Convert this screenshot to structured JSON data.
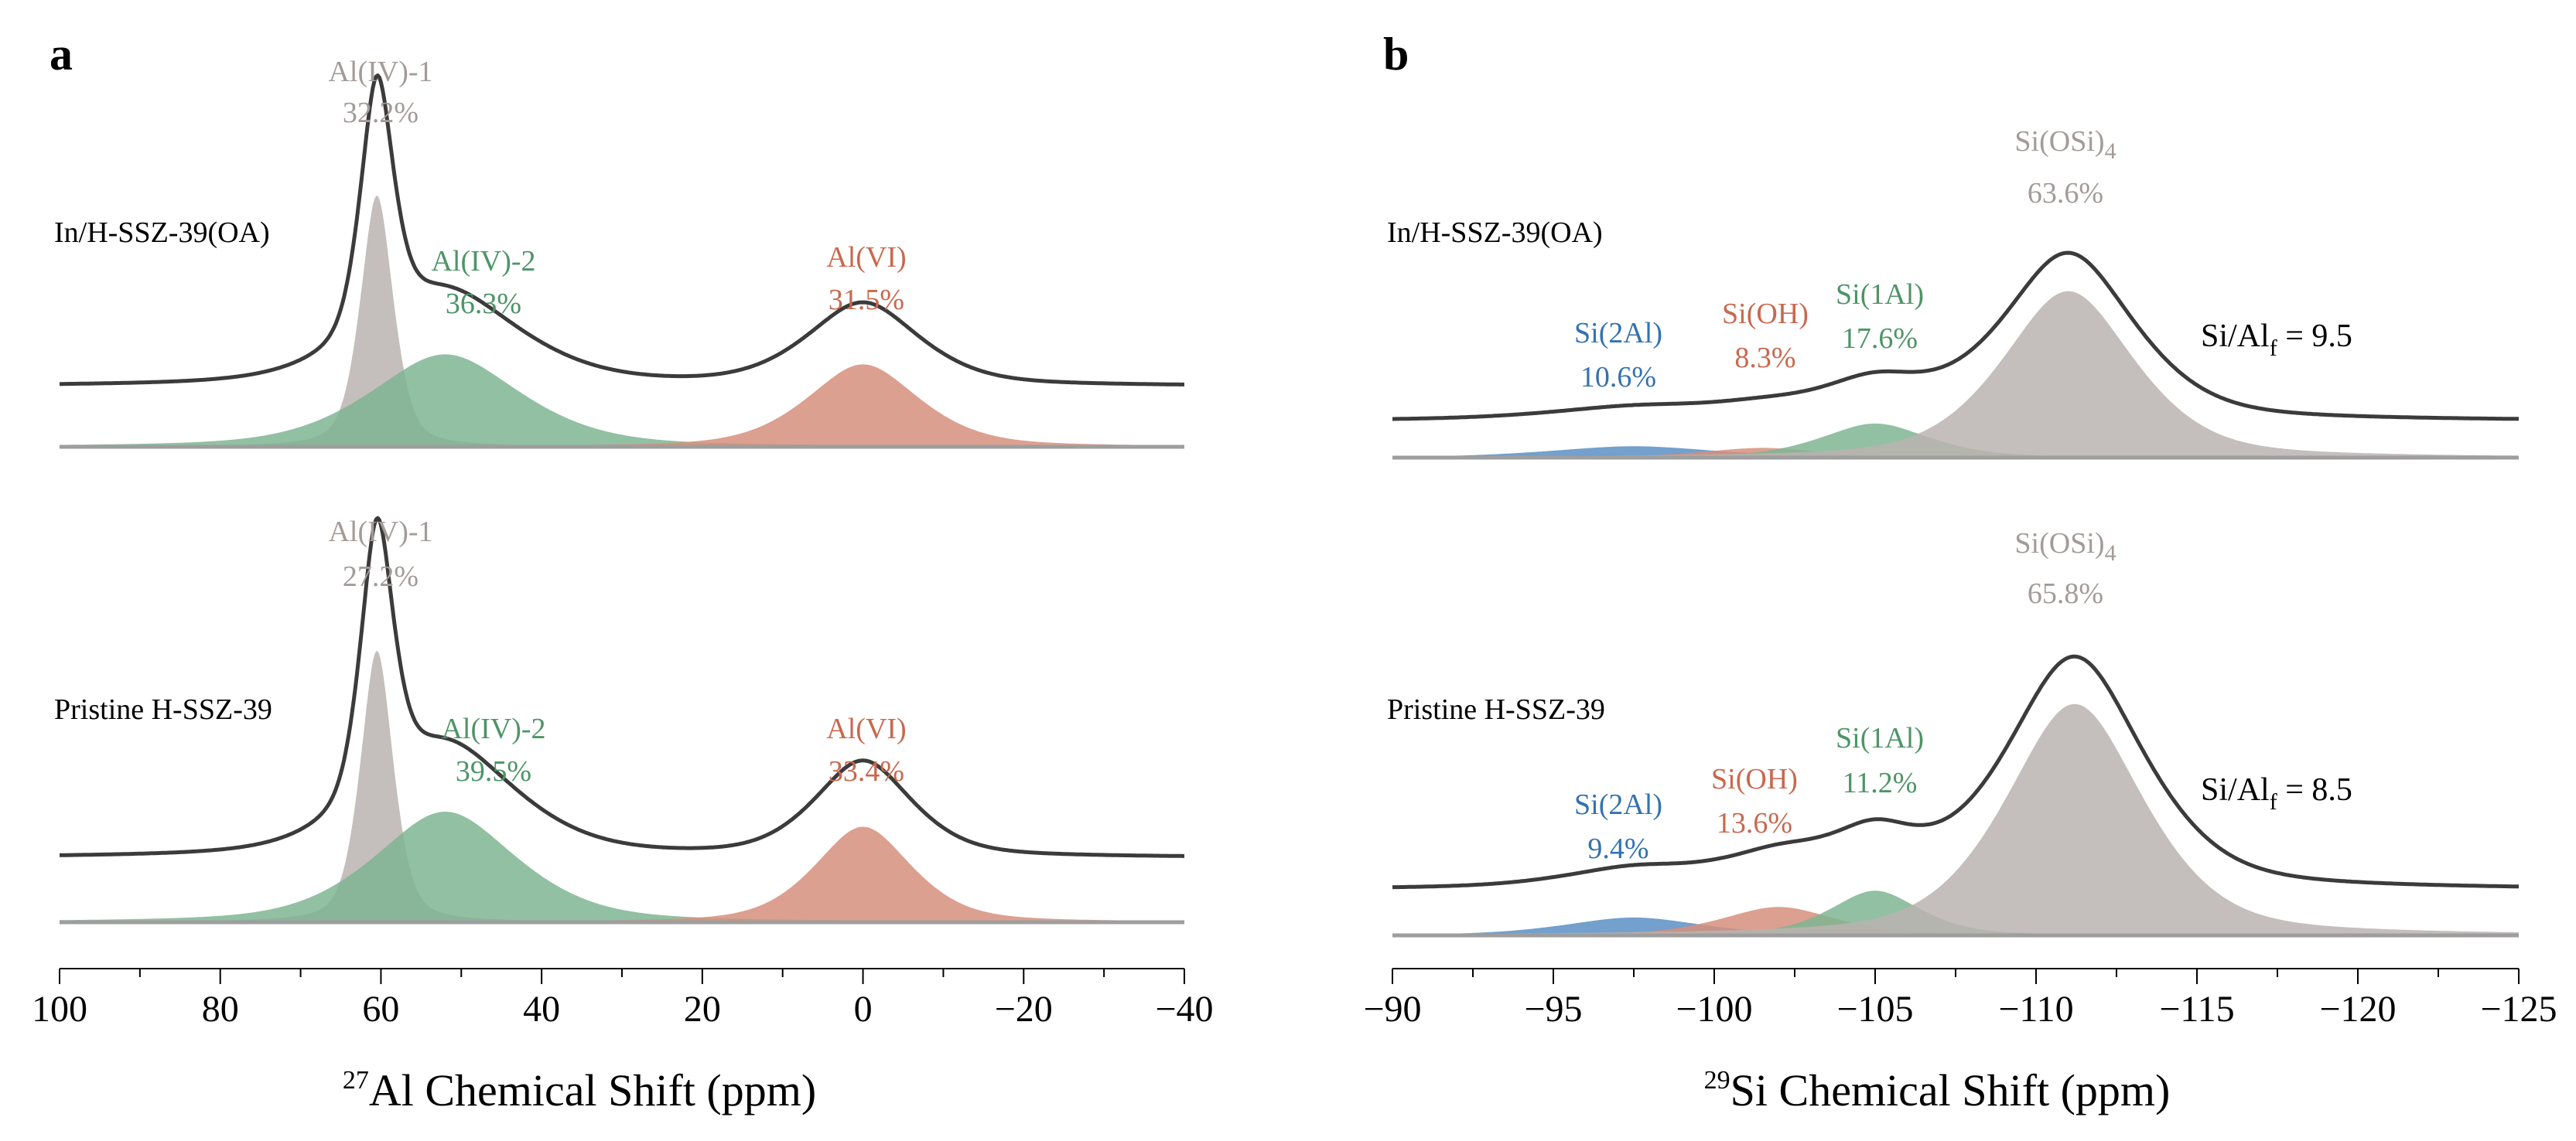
{
  "colors": {
    "gray": "#a39b98",
    "grayFill": "#bab3b0",
    "green": "#4e9468",
    "greenFill": "#7fb592",
    "orange": "#c9684e",
    "orangeFill": "#d68f7c",
    "blue": "#3472b0",
    "blueFill": "#5b8fc4",
    "curve": "#3b3b3b",
    "baseline": "#9e9e9e"
  },
  "chart_data": [
    {
      "type": "line",
      "panel": "a",
      "xlabel_sup": "27",
      "xlabel_main": "Al Chemical Shift (ppm)",
      "xlim": [
        100,
        -40
      ],
      "xticks": [
        100,
        80,
        60,
        40,
        20,
        0,
        -20,
        -40
      ],
      "xtick_labels": [
        "100",
        "80",
        "60",
        "40",
        "20",
        "0",
        "−20",
        "−40"
      ],
      "spectra": [
        {
          "sample": "In/H-SSZ-39(OA)",
          "offset": 0.6,
          "components": [
            {
              "id": "aliv1",
              "name": "Al(IV)-1",
              "percent": "32.2%",
              "center": 60.5,
              "width": 2.2,
              "height": 2.5,
              "color": "gray"
            },
            {
              "id": "aliv2",
              "name": "Al(IV)-2",
              "percent": "36.3%",
              "center": 52,
              "width": 10,
              "height": 0.92,
              "color": "green"
            },
            {
              "id": "alvi",
              "name": "Al(VI)",
              "percent": "31.5%",
              "center": 0,
              "width": 7.5,
              "height": 0.82,
              "color": "orange"
            }
          ]
        },
        {
          "sample": "Pristine H-SSZ-39",
          "offset": 0.64,
          "components": [
            {
              "id": "aliv1",
              "name": "Al(IV)-1",
              "percent": "27.2%",
              "center": 60.5,
              "width": 2.2,
              "height": 2.7,
              "color": "gray"
            },
            {
              "id": "aliv2",
              "name": "Al(IV)-2",
              "percent": "39.5%",
              "center": 52,
              "width": 9.5,
              "height": 1.1,
              "color": "green"
            },
            {
              "id": "alvi",
              "name": "Al(VI)",
              "percent": "33.4%",
              "center": 0,
              "width": 6.5,
              "height": 0.95,
              "color": "orange"
            }
          ]
        }
      ]
    },
    {
      "type": "line",
      "panel": "b",
      "xlabel_sup": "29",
      "xlabel_main": "Si Chemical Shift (ppm)",
      "xlim": [
        -90,
        -125
      ],
      "xticks": [
        -90,
        -95,
        -100,
        -105,
        -110,
        -115,
        -120,
        -125
      ],
      "xtick_labels": [
        "−90",
        "−95",
        "−100",
        "−105",
        "−110",
        "−115",
        "−120",
        "−125"
      ],
      "spectra": [
        {
          "sample": "In/H-SSZ-39(OA)",
          "offset": 0.45,
          "sial_prefix": "Si/Al",
          "sial_sub": "f",
          "sial_value": " = 9.5",
          "components": [
            {
              "id": "si2al",
              "name": "Si(2Al)",
              "percent": "10.6%",
              "center": -97.5,
              "width": 2.8,
              "height": 0.14,
              "color": "blue"
            },
            {
              "id": "sioh",
              "name": "Si(OH)",
              "percent": "8.3%",
              "center": -101.5,
              "width": 2.0,
              "height": 0.12,
              "color": "orange"
            },
            {
              "id": "si1al",
              "name": "Si(1Al)",
              "percent": "17.6%",
              "center": -105,
              "width": 1.8,
              "height": 0.42,
              "color": "green"
            },
            {
              "id": "siosi4",
              "name": "Si(OSi)",
              "sub": "4",
              "percent": "63.6%",
              "center": -111,
              "width": 2.2,
              "height": 2.05,
              "color": "gray"
            }
          ]
        },
        {
          "sample": "Pristine H-SSZ-39",
          "offset": 0.56,
          "sial_prefix": "Si/Al",
          "sial_sub": "f",
          "sial_value": " = 8.5",
          "components": [
            {
              "id": "si2al",
              "name": "Si(2Al)",
              "percent": "9.4%",
              "center": -97.5,
              "width": 2.3,
              "height": 0.22,
              "color": "blue"
            },
            {
              "id": "sioh",
              "name": "Si(OH)",
              "percent": "13.6%",
              "center": -102,
              "width": 1.9,
              "height": 0.35,
              "color": "orange"
            },
            {
              "id": "si1al",
              "name": "Si(1Al)",
              "percent": "11.2%",
              "center": -105,
              "width": 1.5,
              "height": 0.55,
              "color": "green"
            },
            {
              "id": "siosi4",
              "name": "Si(OSi)",
              "sub": "4",
              "percent": "65.8%",
              "center": -111.2,
              "width": 2.3,
              "height": 2.85,
              "color": "gray"
            }
          ]
        }
      ]
    }
  ]
}
